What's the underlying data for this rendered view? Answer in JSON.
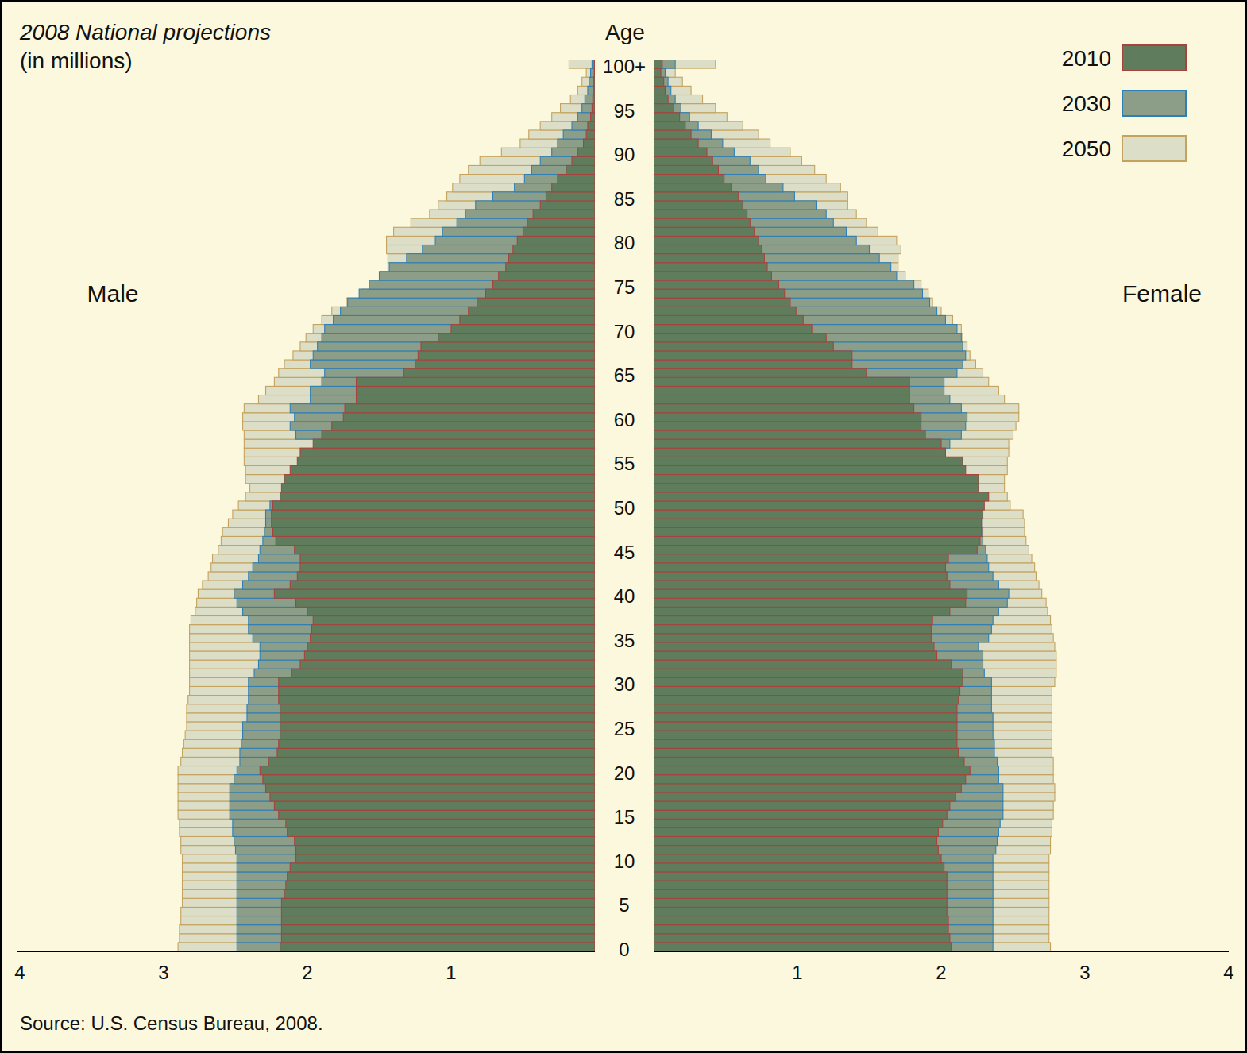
{
  "chart_data": {
    "type": "bar",
    "orientation": "horizontal",
    "stacked": false,
    "grid": false,
    "legend": "top-right",
    "title": "2008 National projections",
    "subtitle": "(in millions)",
    "y_label": "Age",
    "source": "Source: U.S. Census Bureau, 2008.",
    "groups": [
      "Male",
      "Female"
    ],
    "xlim": [
      0,
      4
    ],
    "xticks": [
      1,
      2,
      3,
      4
    ],
    "categories": [
      "0",
      null,
      null,
      null,
      null,
      "5",
      null,
      null,
      null,
      null,
      "10",
      null,
      null,
      null,
      null,
      "15",
      null,
      null,
      null,
      null,
      "20",
      null,
      null,
      null,
      null,
      "25",
      null,
      null,
      null,
      null,
      "30",
      null,
      null,
      null,
      null,
      "35",
      null,
      null,
      null,
      null,
      "40",
      null,
      null,
      null,
      null,
      "45",
      null,
      null,
      null,
      null,
      "50",
      null,
      null,
      null,
      null,
      "55",
      null,
      null,
      null,
      null,
      "60",
      null,
      null,
      null,
      null,
      "65",
      null,
      null,
      null,
      null,
      "70",
      null,
      null,
      null,
      null,
      "75",
      null,
      null,
      null,
      null,
      "80",
      null,
      null,
      null,
      null,
      "85",
      null,
      null,
      null,
      null,
      "90",
      null,
      null,
      null,
      null,
      "95",
      null,
      null,
      null,
      null,
      "100+"
    ],
    "series": [
      {
        "name": "2010",
        "color": "#5f7d5c",
        "values": [
          [
            2.19,
            2.18,
            2.18,
            2.18,
            2.18,
            2.18,
            2.16,
            2.15,
            2.14,
            2.12,
            2.08,
            2.08,
            2.09,
            2.14,
            2.15,
            2.2,
            2.23,
            2.26,
            2.29,
            2.31,
            2.33,
            2.27,
            2.21,
            2.2,
            2.19,
            2.19,
            2.19,
            2.19,
            2.2,
            2.2,
            2.2,
            2.11,
            2.05,
            2.02,
            2.0,
            1.98,
            1.97,
            1.96,
            2.0,
            2.08,
            2.23,
            2.12,
            2.07,
            2.05,
            2.05,
            2.09,
            2.22,
            2.24,
            2.25,
            2.25,
            2.24,
            2.19,
            2.18,
            2.16,
            2.12,
            2.07,
            2.05,
            1.96,
            1.9,
            1.83,
            1.75,
            1.74,
            1.66,
            1.66,
            1.66,
            1.33,
            1.25,
            1.23,
            1.21,
            1.09,
            1.0,
            0.94,
            0.88,
            0.82,
            0.76,
            0.71,
            0.67,
            0.62,
            0.6,
            0.57,
            0.54,
            0.5,
            0.47,
            0.43,
            0.38,
            0.34,
            0.3,
            0.26,
            0.2,
            0.16,
            0.12,
            0.08,
            0.06,
            0.05,
            0.03,
            0.02,
            0.015,
            0.01,
            0.01,
            0.005,
            0.005
          ],
          [
            2.07,
            2.06,
            2.05,
            2.05,
            2.04,
            2.04,
            2.04,
            2.04,
            2.04,
            2.02,
            2.0,
            1.98,
            1.97,
            1.98,
            2.01,
            2.04,
            2.06,
            2.1,
            2.14,
            2.17,
            2.2,
            2.16,
            2.12,
            2.11,
            2.11,
            2.11,
            2.11,
            2.11,
            2.12,
            2.13,
            2.15,
            2.15,
            2.07,
            1.97,
            1.95,
            1.93,
            1.93,
            1.94,
            2.06,
            2.17,
            2.18,
            2.06,
            2.04,
            2.03,
            2.05,
            2.25,
            2.27,
            2.28,
            2.28,
            2.29,
            2.3,
            2.33,
            2.26,
            2.26,
            2.17,
            2.15,
            2.03,
            2.0,
            1.89,
            1.86,
            1.86,
            1.81,
            1.78,
            1.78,
            1.78,
            1.48,
            1.38,
            1.38,
            1.25,
            1.2,
            1.1,
            1.04,
            0.99,
            0.95,
            0.91,
            0.87,
            0.82,
            0.79,
            0.77,
            0.75,
            0.73,
            0.7,
            0.67,
            0.65,
            0.62,
            0.59,
            0.54,
            0.49,
            0.45,
            0.41,
            0.37,
            0.31,
            0.26,
            0.22,
            0.18,
            0.14,
            0.1,
            0.08,
            0.07,
            0.05,
            0.06
          ]
        ]
      },
      {
        "name": "2030",
        "color": "#8c9e88",
        "values": [
          [
            2.49,
            2.49,
            2.49,
            2.49,
            2.49,
            2.49,
            2.49,
            2.49,
            2.49,
            2.49,
            2.49,
            2.5,
            2.51,
            2.52,
            2.52,
            2.54,
            2.54,
            2.54,
            2.54,
            2.51,
            2.49,
            2.47,
            2.47,
            2.46,
            2.45,
            2.45,
            2.42,
            2.42,
            2.41,
            2.41,
            2.41,
            2.37,
            2.34,
            2.33,
            2.33,
            2.38,
            2.41,
            2.41,
            2.45,
            2.49,
            2.51,
            2.45,
            2.41,
            2.38,
            2.34,
            2.33,
            2.31,
            2.3,
            2.29,
            2.29,
            2.26,
            2.18,
            2.12,
            2.08,
            2.01,
            1.98,
            1.96,
            1.93,
            2.08,
            2.12,
            2.09,
            2.12,
            1.98,
            1.98,
            1.9,
            1.88,
            1.98,
            1.96,
            1.93,
            1.9,
            1.88,
            1.82,
            1.77,
            1.72,
            1.64,
            1.57,
            1.5,
            1.43,
            1.31,
            1.2,
            1.11,
            1.06,
            0.96,
            0.9,
            0.83,
            0.71,
            0.56,
            0.49,
            0.44,
            0.38,
            0.3,
            0.26,
            0.22,
            0.16,
            0.12,
            0.09,
            0.07,
            0.05,
            0.04,
            0.03,
            0.02
          ],
          [
            2.36,
            2.36,
            2.36,
            2.36,
            2.36,
            2.36,
            2.36,
            2.36,
            2.36,
            2.36,
            2.36,
            2.38,
            2.39,
            2.4,
            2.41,
            2.43,
            2.43,
            2.43,
            2.43,
            2.4,
            2.4,
            2.39,
            2.37,
            2.37,
            2.36,
            2.36,
            2.36,
            2.35,
            2.35,
            2.35,
            2.35,
            2.3,
            2.29,
            2.29,
            2.26,
            2.33,
            2.35,
            2.36,
            2.4,
            2.46,
            2.47,
            2.4,
            2.36,
            2.33,
            2.32,
            2.31,
            2.29,
            2.29,
            2.28,
            2.28,
            2.26,
            2.17,
            2.11,
            2.07,
            2.04,
            2.03,
            2.02,
            2.06,
            2.14,
            2.17,
            2.18,
            2.14,
            2.06,
            2.02,
            2.02,
            2.11,
            2.15,
            2.17,
            2.15,
            2.14,
            2.11,
            2.03,
            1.97,
            1.92,
            1.87,
            1.81,
            1.69,
            1.65,
            1.57,
            1.5,
            1.41,
            1.34,
            1.25,
            1.2,
            1.13,
            0.98,
            0.9,
            0.78,
            0.73,
            0.67,
            0.56,
            0.48,
            0.4,
            0.31,
            0.25,
            0.19,
            0.15,
            0.12,
            0.1,
            0.08,
            0.15
          ]
        ]
      },
      {
        "name": "2050",
        "color": "#dcdec8",
        "values": [
          [
            2.9,
            2.89,
            2.89,
            2.88,
            2.88,
            2.87,
            2.87,
            2.87,
            2.87,
            2.87,
            2.87,
            2.88,
            2.88,
            2.89,
            2.89,
            2.9,
            2.9,
            2.9,
            2.9,
            2.9,
            2.9,
            2.88,
            2.87,
            2.86,
            2.85,
            2.84,
            2.84,
            2.84,
            2.83,
            2.82,
            2.82,
            2.82,
            2.82,
            2.82,
            2.82,
            2.82,
            2.82,
            2.81,
            2.78,
            2.77,
            2.76,
            2.73,
            2.69,
            2.67,
            2.66,
            2.62,
            2.6,
            2.59,
            2.55,
            2.52,
            2.48,
            2.43,
            2.4,
            2.43,
            2.43,
            2.44,
            2.44,
            2.44,
            2.44,
            2.45,
            2.45,
            2.44,
            2.34,
            2.29,
            2.23,
            2.2,
            2.16,
            2.1,
            2.05,
            2.01,
            1.96,
            1.9,
            1.83,
            1.73,
            1.62,
            1.57,
            1.49,
            1.44,
            1.44,
            1.45,
            1.45,
            1.4,
            1.28,
            1.15,
            1.09,
            1.03,
            0.99,
            0.94,
            0.88,
            0.8,
            0.65,
            0.52,
            0.46,
            0.38,
            0.3,
            0.24,
            0.17,
            0.12,
            0.09,
            0.06,
            0.18
          ],
          [
            2.76,
            2.75,
            2.75,
            2.75,
            2.75,
            2.75,
            2.75,
            2.75,
            2.75,
            2.75,
            2.75,
            2.76,
            2.76,
            2.77,
            2.77,
            2.78,
            2.78,
            2.79,
            2.79,
            2.78,
            2.78,
            2.78,
            2.77,
            2.77,
            2.77,
            2.77,
            2.77,
            2.77,
            2.77,
            2.77,
            2.79,
            2.8,
            2.8,
            2.8,
            2.79,
            2.78,
            2.77,
            2.76,
            2.74,
            2.73,
            2.7,
            2.68,
            2.66,
            2.65,
            2.63,
            2.61,
            2.59,
            2.58,
            2.58,
            2.57,
            2.48,
            2.46,
            2.44,
            2.44,
            2.46,
            2.46,
            2.47,
            2.47,
            2.5,
            2.52,
            2.54,
            2.54,
            2.44,
            2.4,
            2.33,
            2.29,
            2.24,
            2.2,
            2.18,
            2.15,
            2.14,
            2.08,
            2.0,
            1.94,
            1.91,
            1.86,
            1.75,
            1.7,
            1.7,
            1.72,
            1.69,
            1.56,
            1.48,
            1.41,
            1.35,
            1.35,
            1.3,
            1.2,
            1.12,
            1.03,
            0.95,
            0.81,
            0.73,
            0.62,
            0.51,
            0.43,
            0.34,
            0.26,
            0.2,
            0.15,
            0.43
          ]
        ]
      }
    ]
  }
}
